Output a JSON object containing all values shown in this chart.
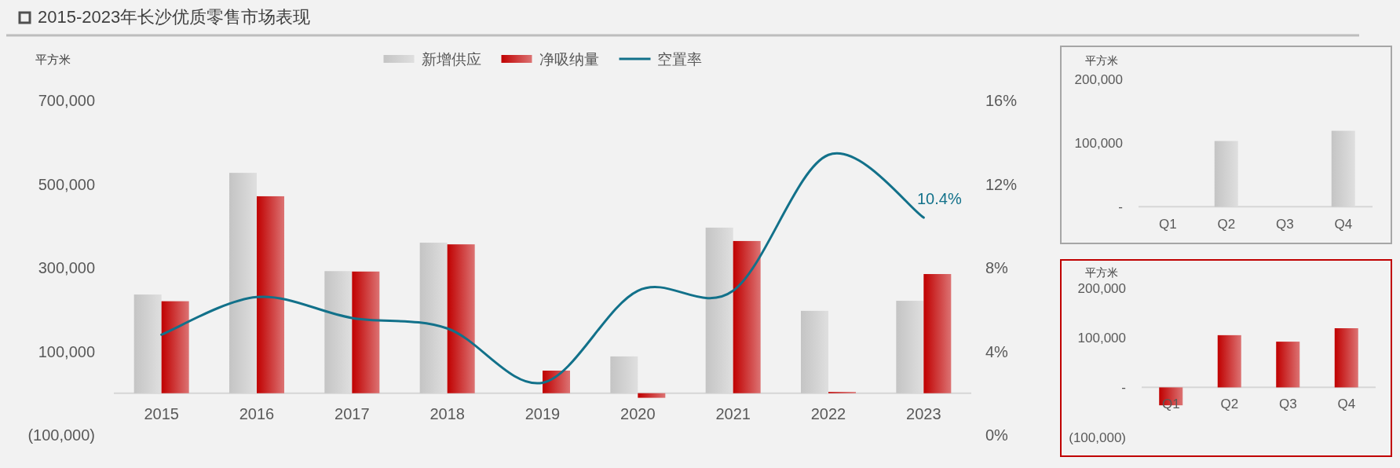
{
  "chart_data": [
    {
      "type": "bar",
      "title": "2015-2023年长沙优质零售市场表现",
      "ylabel": "平方米",
      "legend": "top",
      "categories": [
        "2015",
        "2016",
        "2017",
        "2018",
        "2019",
        "2020",
        "2021",
        "2022",
        "2023"
      ],
      "ylim": [
        -100000,
        700000
      ],
      "yticks": [
        {
          "value": 700000,
          "label": "700,000"
        },
        {
          "value": 500000,
          "label": "500,000"
        },
        {
          "value": 300000,
          "label": "300,000"
        },
        {
          "value": 100000,
          "label": "100,000"
        },
        {
          "value": -100000,
          "label": "(100,000)"
        }
      ],
      "y2lim": [
        0,
        16
      ],
      "y2ticks": [
        {
          "value": 16,
          "label": "16%"
        },
        {
          "value": 12,
          "label": "12%"
        },
        {
          "value": 8,
          "label": "8%"
        },
        {
          "value": 4,
          "label": "4%"
        },
        {
          "value": 0,
          "label": "0%"
        }
      ],
      "series": [
        {
          "name": "新增供应",
          "color": "#c4c4c4",
          "values": [
            236000,
            527000,
            292000,
            360000,
            null,
            88000,
            396000,
            197000,
            221000
          ]
        },
        {
          "name": "净吸纳量",
          "color": "#c00000",
          "values": [
            220000,
            471000,
            291000,
            356000,
            54000,
            -11000,
            364000,
            3000,
            285000
          ]
        },
        {
          "name": "空置率",
          "type": "line",
          "axis": "y2",
          "color": "#12718a",
          "values": [
            4.8,
            6.6,
            5.6,
            5.1,
            2.5,
            6.9,
            6.9,
            13.4,
            10.4
          ],
          "value_labels": [
            null,
            null,
            null,
            null,
            null,
            null,
            null,
            null,
            "10.4%"
          ]
        }
      ]
    },
    {
      "type": "bar",
      "ylabel": "平方米",
      "categories": [
        "Q1",
        "Q2",
        "Q3",
        "Q4"
      ],
      "ylim": [
        0,
        200000
      ],
      "yticks": [
        {
          "value": 200000,
          "label": "200,000"
        },
        {
          "value": 100000,
          "label": "100,000"
        },
        {
          "value": 0,
          "label": "-"
        }
      ],
      "series": [
        {
          "color": "#c4c4c4",
          "values": [
            null,
            103000,
            null,
            119000
          ]
        }
      ]
    },
    {
      "type": "bar",
      "ylabel": "平方米",
      "categories": [
        "Q1",
        "Q2",
        "Q3",
        "Q4"
      ],
      "ylim": [
        -100000,
        200000
      ],
      "yticks": [
        {
          "value": 200000,
          "label": "200,000"
        },
        {
          "value": 100000,
          "label": "100,000"
        },
        {
          "value": 0,
          "label": "-"
        },
        {
          "value": -100000,
          "label": "(100,000)"
        }
      ],
      "series": [
        {
          "color": "#c00000",
          "values": [
            -36000,
            105000,
            92000,
            119000
          ]
        }
      ]
    }
  ]
}
